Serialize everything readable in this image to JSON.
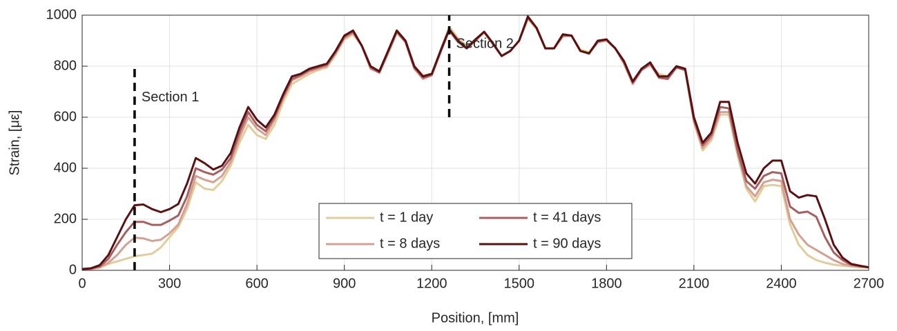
{
  "chart_data": {
    "type": "line",
    "xlabel": "Position, [mm]",
    "ylabel": "Strain, [με]",
    "xlim": [
      0,
      2700
    ],
    "xticks": [
      0,
      300,
      600,
      900,
      1200,
      1500,
      1800,
      2100,
      2400,
      2700
    ],
    "ylim": [
      0,
      1000
    ],
    "yticks": [
      0,
      200,
      400,
      600,
      800,
      1000
    ],
    "grid": true,
    "legend": "lower center",
    "x": [
      0,
      30,
      60,
      90,
      120,
      150,
      180,
      210,
      240,
      270,
      300,
      330,
      360,
      390,
      420,
      450,
      480,
      510,
      540,
      570,
      600,
      630,
      660,
      690,
      720,
      750,
      780,
      810,
      840,
      870,
      900,
      930,
      960,
      990,
      1020,
      1050,
      1080,
      1110,
      1140,
      1170,
      1200,
      1230,
      1260,
      1290,
      1320,
      1350,
      1380,
      1410,
      1440,
      1470,
      1500,
      1530,
      1560,
      1590,
      1620,
      1650,
      1680,
      1710,
      1740,
      1770,
      1800,
      1830,
      1860,
      1890,
      1920,
      1950,
      1980,
      2010,
      2040,
      2070,
      2100,
      2130,
      2160,
      2190,
      2220,
      2250,
      2280,
      2310,
      2340,
      2370,
      2400,
      2430,
      2460,
      2490,
      2520,
      2550,
      2580,
      2610,
      2640,
      2670,
      2700
    ],
    "series": [
      {
        "name": "t = 1 day",
        "color": "#e0cd9a",
        "values": [
          3,
          5,
          10,
          25,
          35,
          45,
          55,
          60,
          65,
          90,
          130,
          170,
          240,
          345,
          320,
          315,
          350,
          410,
          500,
          570,
          530,
          515,
          570,
          660,
          730,
          750,
          770,
          785,
          795,
          845,
          905,
          925,
          880,
          800,
          780,
          850,
          930,
          895,
          800,
          765,
          770,
          860,
          955,
          910,
          880,
          905,
          930,
          885,
          840,
          860,
          900,
          985,
          945,
          870,
          870,
          915,
          920,
          865,
          855,
          895,
          900,
          870,
          815,
          740,
          790,
          805,
          770,
          760,
          795,
          785,
          580,
          470,
          510,
          610,
          610,
          450,
          320,
          270,
          330,
          335,
          330,
          180,
          100,
          60,
          40,
          30,
          22,
          18,
          15,
          12,
          10
        ]
      },
      {
        "name": "t = 8 days",
        "color": "#d4a08f",
        "values": [
          4,
          6,
          12,
          30,
          60,
          100,
          128,
          125,
          115,
          120,
          145,
          180,
          260,
          370,
          355,
          345,
          370,
          425,
          520,
          600,
          555,
          530,
          590,
          675,
          745,
          760,
          780,
          790,
          800,
          850,
          910,
          930,
          880,
          790,
          775,
          850,
          935,
          895,
          790,
          750,
          765,
          855,
          945,
          905,
          875,
          900,
          935,
          885,
          840,
          860,
          900,
          990,
          950,
          870,
          870,
          920,
          920,
          860,
          850,
          895,
          900,
          870,
          810,
          730,
          785,
          805,
          760,
          755,
          795,
          785,
          585,
          480,
          520,
          620,
          620,
          460,
          330,
          290,
          345,
          355,
          350,
          200,
          140,
          100,
          80,
          60,
          40,
          25,
          18,
          14,
          12
        ]
      },
      {
        "name": "t = 41 days",
        "color": "#a85e5e",
        "values": [
          5,
          7,
          15,
          45,
          100,
          150,
          190,
          190,
          178,
          178,
          195,
          215,
          290,
          400,
          385,
          375,
          395,
          440,
          540,
          620,
          570,
          545,
          600,
          680,
          750,
          765,
          785,
          795,
          805,
          855,
          915,
          935,
          880,
          795,
          775,
          855,
          935,
          895,
          795,
          755,
          765,
          855,
          940,
          895,
          870,
          900,
          935,
          890,
          840,
          860,
          900,
          990,
          950,
          870,
          870,
          920,
          920,
          860,
          850,
          895,
          905,
          870,
          815,
          735,
          785,
          810,
          755,
          750,
          795,
          785,
          590,
          490,
          530,
          640,
          635,
          470,
          350,
          320,
          370,
          385,
          380,
          250,
          225,
          230,
          210,
          130,
          70,
          40,
          22,
          16,
          12
        ]
      },
      {
        "name": "t = 90 days",
        "color": "#5c0f10",
        "values": [
          5,
          8,
          20,
          60,
          130,
          200,
          255,
          258,
          240,
          228,
          240,
          260,
          340,
          440,
          420,
          395,
          410,
          460,
          560,
          640,
          590,
          560,
          610,
          690,
          760,
          770,
          790,
          800,
          810,
          860,
          920,
          940,
          880,
          800,
          780,
          860,
          940,
          900,
          800,
          760,
          770,
          860,
          945,
          900,
          870,
          905,
          935,
          890,
          840,
          860,
          900,
          995,
          950,
          870,
          870,
          925,
          920,
          860,
          850,
          900,
          905,
          870,
          820,
          740,
          790,
          815,
          760,
          760,
          800,
          790,
          600,
          500,
          540,
          660,
          660,
          500,
          380,
          340,
          400,
          430,
          430,
          310,
          285,
          295,
          290,
          200,
          100,
          50,
          25,
          18,
          12
        ]
      }
    ],
    "annotations": [
      {
        "text": "Section 1",
        "x": 180,
        "y": [
          0,
          790
        ]
      },
      {
        "text": "Section 2",
        "x": 1260,
        "y": [
          600,
          1000
        ]
      }
    ]
  }
}
